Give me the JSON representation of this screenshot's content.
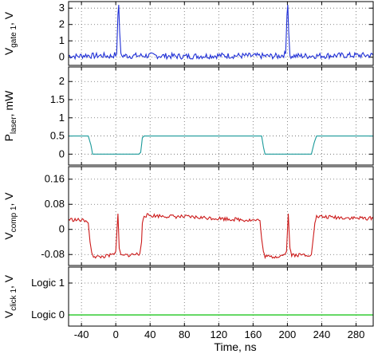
{
  "chart_data": {
    "type": "line",
    "xlabel": "Time, ns",
    "xlim": [
      -55,
      300
    ],
    "xticks": [
      -40,
      0,
      40,
      80,
      120,
      160,
      200,
      240,
      280
    ],
    "panels": [
      {
        "id": "gate",
        "ylabel_main": "V",
        "ylabel_sub": "gate 1",
        "ylabel_tail": ", V",
        "ylim": [
          -0.5,
          3.4
        ],
        "yticks": [
          0,
          1,
          2,
          3
        ],
        "ytick_labels": [
          "0",
          "1",
          "2",
          "3"
        ],
        "color": "#1f2fd6",
        "series": {
          "name": "",
          "x": [
            -55,
            -45,
            -35,
            -25,
            -15,
            -5,
            1,
            2.5,
            3.5,
            4.5,
            6,
            15,
            40,
            80,
            120,
            160,
            190,
            198,
            199.5,
            200.5,
            201.5,
            203,
            215,
            250,
            300
          ],
          "y": [
            0.1,
            0.05,
            0.12,
            0.08,
            0.1,
            0.06,
            0.2,
            2.6,
            3.2,
            1.6,
            0.1,
            0.08,
            0.1,
            0.05,
            0.1,
            0.08,
            0.06,
            0.2,
            2.6,
            3.2,
            1.6,
            0.1,
            0.07,
            0.1,
            0.12
          ]
        }
      },
      {
        "id": "laser",
        "ylabel_main": "P",
        "ylabel_sub": "laser",
        "ylabel_tail": ", mW",
        "ylim": [
          -0.3,
          2.4
        ],
        "yticks": [
          0,
          0.5,
          1,
          1.5,
          2
        ],
        "ytick_labels": [
          "0",
          "0.5",
          "1",
          "1.5",
          "2"
        ],
        "color": "#1a9a9a",
        "series": {
          "name": "",
          "x": [
            -55,
            -32,
            -29,
            -27,
            27,
            29,
            31,
            33,
            170,
            172,
            174,
            176,
            228,
            231,
            234,
            300
          ],
          "y": [
            0.5,
            0.5,
            0.25,
            0.0,
            0.0,
            0.05,
            0.45,
            0.5,
            0.5,
            0.2,
            0.0,
            0.0,
            0.0,
            0.3,
            0.5,
            0.5
          ]
        }
      },
      {
        "id": "comp",
        "ylabel_main": "V",
        "ylabel_sub": "comp 1",
        "ylabel_tail": ", V",
        "ylim": [
          -0.115,
          0.2
        ],
        "yticks": [
          -0.08,
          0,
          0.08,
          0.16
        ],
        "ytick_labels": [
          "-0.08",
          "0",
          "0.08",
          "0.16"
        ],
        "color": "#cc1a1a",
        "series": {
          "name": "",
          "x": [
            -55,
            -45,
            -35,
            -32,
            -30,
            -28,
            -26,
            -20,
            -10,
            -2,
            0,
            2.5,
            4,
            6,
            10,
            20,
            28,
            30,
            31,
            33,
            40,
            80,
            120,
            168,
            170,
            172,
            174,
            180,
            190,
            197,
            199,
            201,
            203,
            205,
            210,
            228,
            230,
            232,
            234,
            240,
            280,
            300
          ],
          "y": [
            0.032,
            0.03,
            0.028,
            0.02,
            -0.04,
            -0.075,
            -0.085,
            -0.088,
            -0.085,
            -0.08,
            -0.07,
            0.05,
            -0.06,
            -0.08,
            -0.083,
            -0.08,
            -0.078,
            -0.04,
            0.02,
            0.045,
            0.044,
            0.04,
            0.035,
            0.028,
            -0.03,
            -0.07,
            -0.085,
            -0.088,
            -0.085,
            -0.08,
            -0.07,
            0.05,
            -0.06,
            -0.08,
            -0.082,
            -0.08,
            -0.03,
            0.02,
            0.04,
            0.04,
            0.036,
            0.035
          ]
        }
      },
      {
        "id": "click",
        "ylabel_main": "V",
        "ylabel_sub": "click 1",
        "ylabel_tail": ", V",
        "ylim": [
          -0.35,
          1.5
        ],
        "yticks": [
          0,
          1
        ],
        "ytick_labels": [
          "Logic 0",
          "Logic 1"
        ],
        "color": "#33cc33",
        "series": {
          "name": "",
          "x": [
            -55,
            300
          ],
          "y": [
            0,
            0
          ]
        }
      }
    ],
    "grid": true,
    "legend": "none"
  }
}
